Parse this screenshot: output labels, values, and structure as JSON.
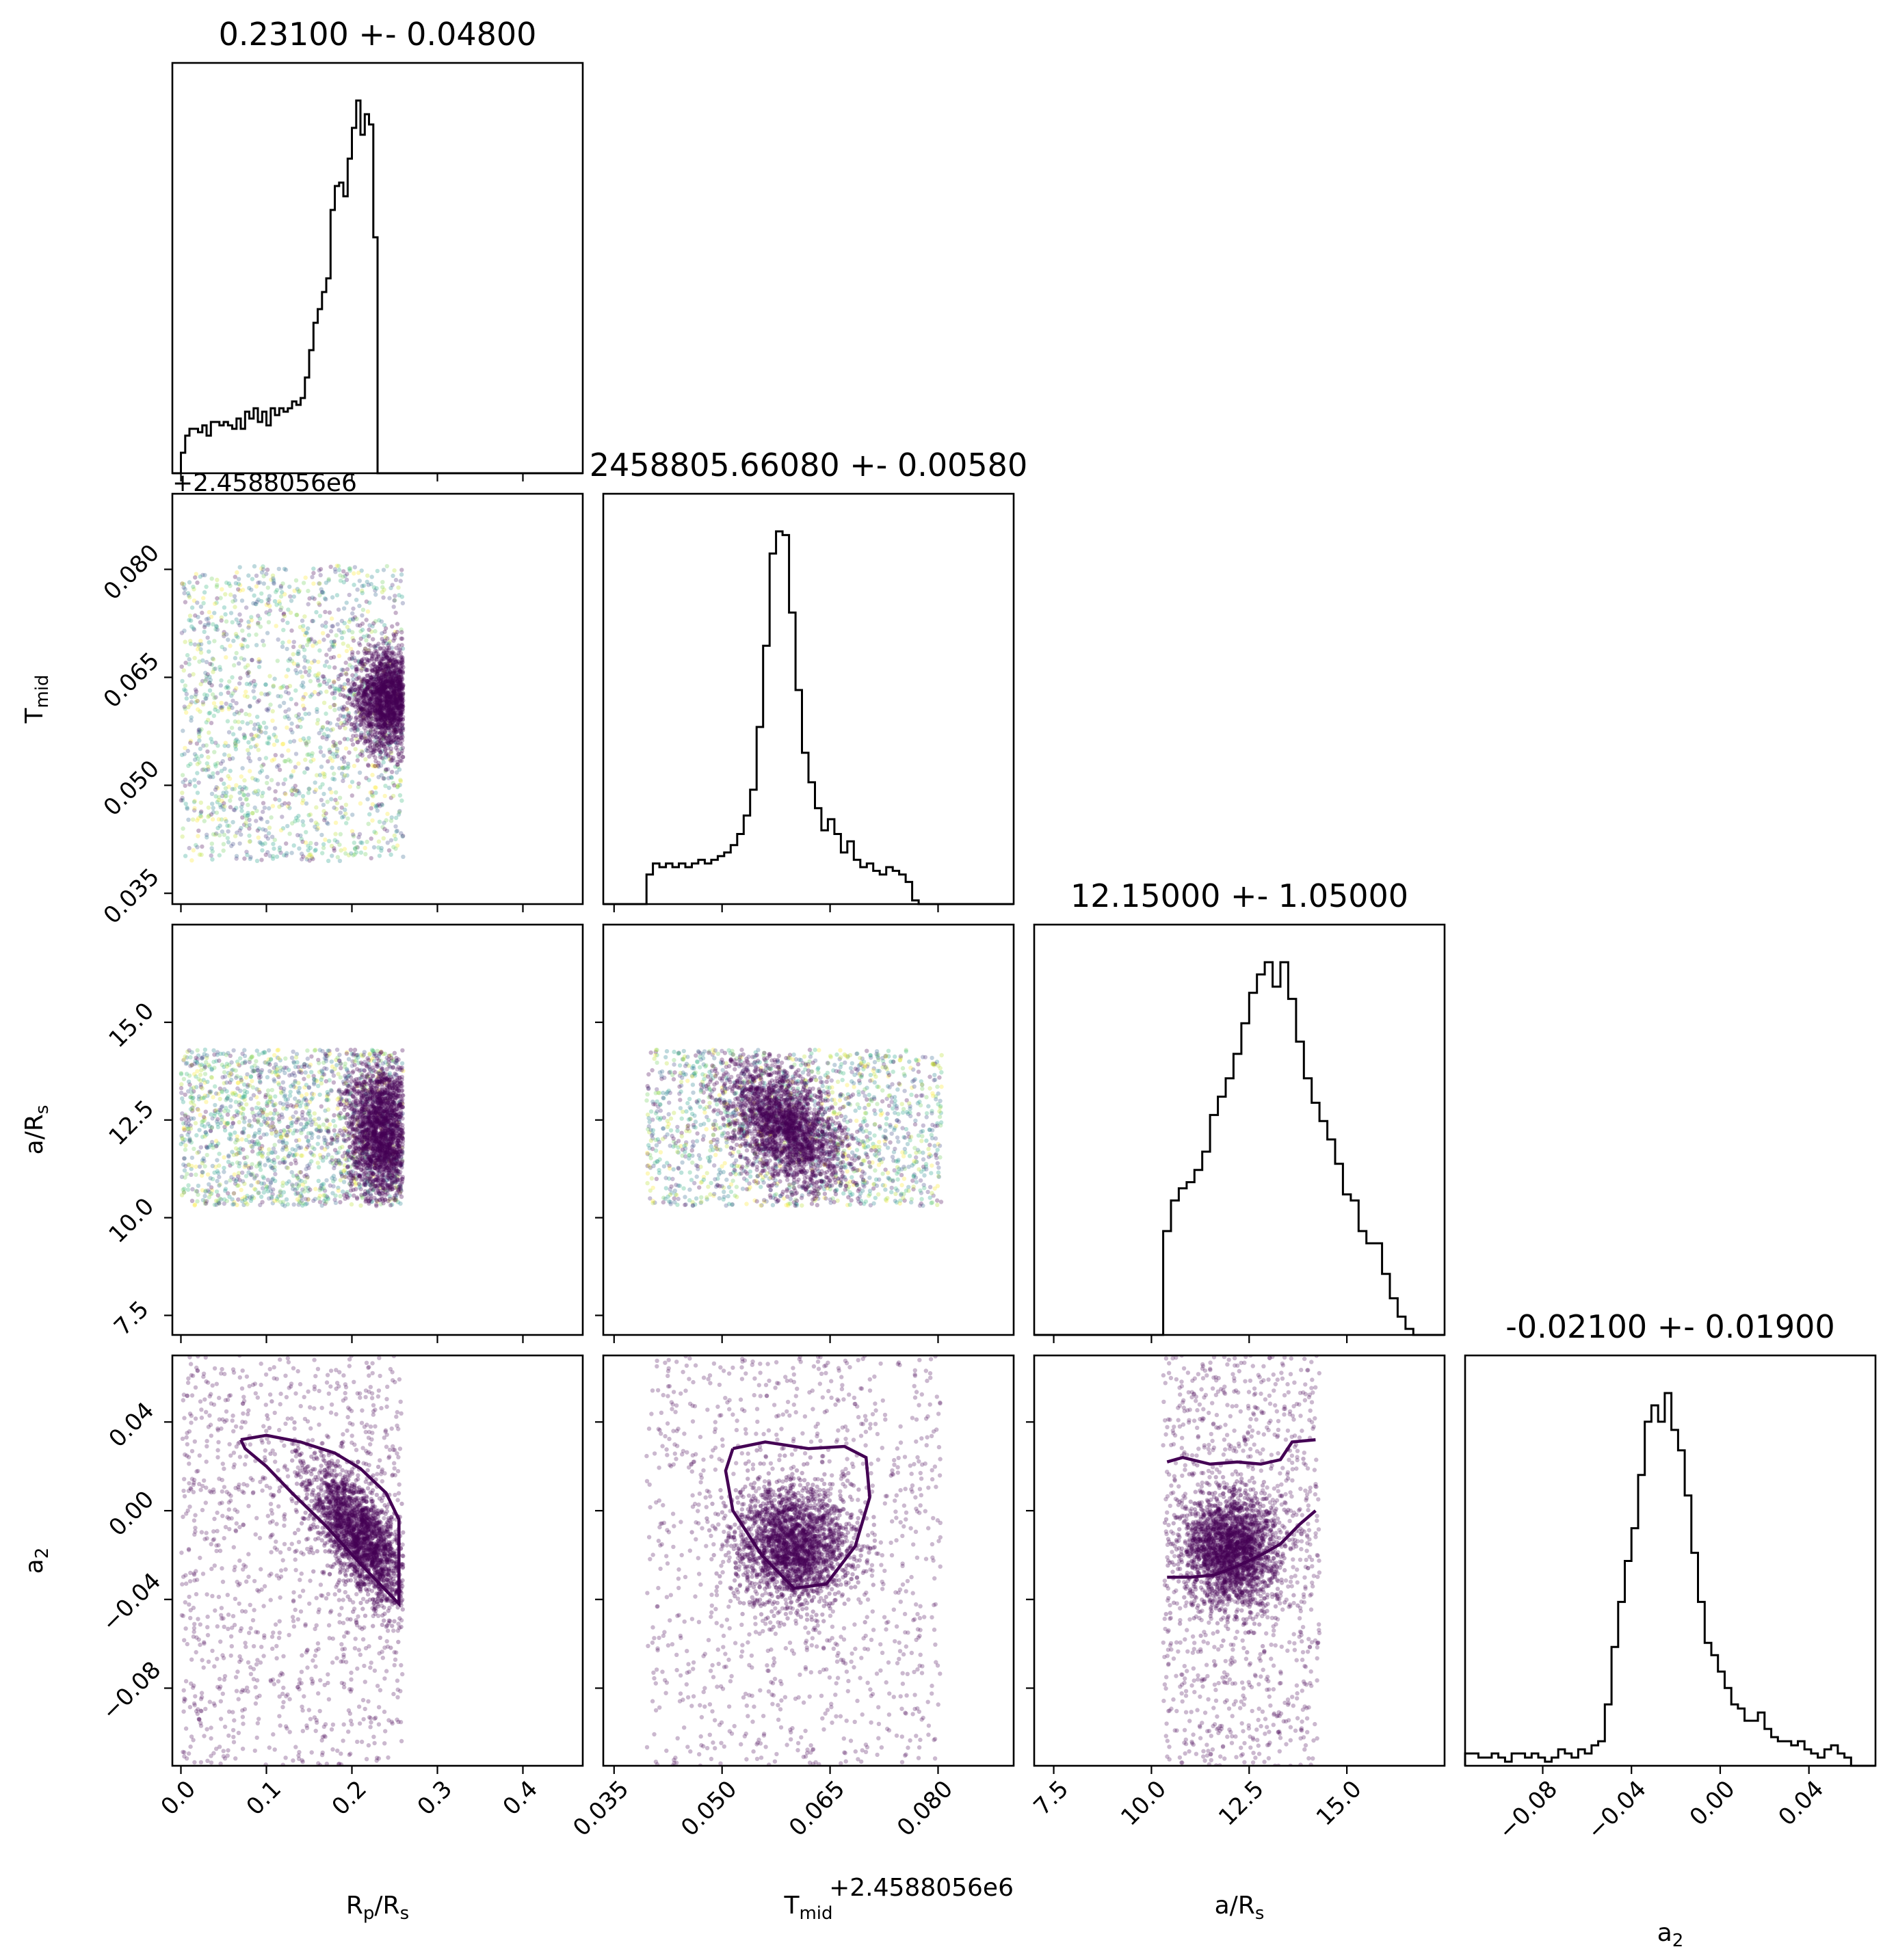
{
  "chart_data": {
    "type": "scatter",
    "layout": "corner",
    "parameters": [
      {
        "id": "rp",
        "label": "R",
        "label_sub": "p",
        "label_tail": "/R",
        "label_sub2": "s",
        "range": [
          -0.01,
          0.47
        ],
        "ticks": [
          "0.0",
          "0.1",
          "0.2",
          "0.3",
          "0.4"
        ],
        "tick_values": [
          0.0,
          0.1,
          0.2,
          0.3,
          0.4
        ],
        "offset_text": ""
      },
      {
        "id": "tmid",
        "label": "T",
        "label_sub": "mid",
        "label_tail": "",
        "label_sub2": "",
        "range": [
          0.0335,
          0.0905
        ],
        "ticks": [
          "0.035",
          "0.050",
          "0.065",
          "0.080"
        ],
        "tick_values": [
          0.035,
          0.05,
          0.065,
          0.08
        ],
        "offset_text": "+2.4588056e6"
      },
      {
        "id": "ars",
        "label": "a/R",
        "label_sub": "s",
        "label_tail": "",
        "label_sub2": "",
        "range": [
          7.0,
          17.5
        ],
        "ticks": [
          "7.5",
          "10.0",
          "12.5",
          "15.0"
        ],
        "tick_values": [
          7.5,
          10.0,
          12.5,
          15.0
        ],
        "offset_text": ""
      },
      {
        "id": "a2",
        "label": "a",
        "label_sub": "2",
        "label_tail": "",
        "label_sub2": "",
        "range": [
          -0.115,
          0.07
        ],
        "ticks": [
          "−0.08",
          "−0.04",
          "0.00",
          "0.04"
        ],
        "tick_values": [
          -0.08,
          -0.04,
          0.0,
          0.04
        ],
        "offset_text": ""
      }
    ],
    "titles": [
      "0.23100 +- 0.04800",
      "2458805.66080 +- 0.00580",
      "12.15000 +- 1.05000",
      "-0.02100 +- 0.01900"
    ],
    "histograms": [
      {
        "param": "rp",
        "bin_width": 0.005,
        "start": 0.0,
        "counts": [
          6,
          11,
          13,
          13,
          12,
          14,
          11,
          15,
          15,
          14,
          15,
          14,
          13,
          16,
          13,
          18,
          16,
          19,
          15,
          18,
          14,
          19,
          17,
          19,
          18,
          19,
          21,
          20,
          22,
          28,
          36,
          44,
          48,
          53,
          57,
          77,
          84,
          85,
          81,
          92,
          101,
          109,
          99,
          105,
          102,
          69,
          0
        ]
      },
      {
        "param": "tmid",
        "bin_width": 0.0009,
        "start": 0.0395,
        "counts": [
          8,
          11,
          10,
          11,
          10,
          11,
          10,
          11,
          12,
          11,
          12,
          13,
          14,
          16,
          19,
          24,
          31,
          48,
          70,
          95,
          101,
          100,
          79,
          58,
          41,
          33,
          26,
          20,
          23,
          19,
          14,
          17,
          12,
          10,
          11,
          9,
          8,
          10,
          9,
          8,
          6,
          1
        ]
      },
      {
        "param": "ars",
        "bin_width": 0.2,
        "start": 10.3,
        "counts": [
          17,
          22,
          24,
          25,
          27,
          30,
          36,
          39,
          42,
          46,
          51,
          56,
          59,
          61,
          57,
          61,
          55,
          48,
          42,
          38,
          35,
          32,
          28,
          23,
          22,
          17,
          15,
          15,
          10,
          6,
          3,
          1
        ]
      },
      {
        "param": "a2",
        "bin_width": 0.003,
        "start": -0.115,
        "counts": [
          3,
          3,
          2,
          2,
          3,
          2,
          1,
          3,
          3,
          2,
          3,
          2,
          1,
          2,
          4,
          3,
          2,
          4,
          3,
          5,
          6,
          15,
          29,
          40,
          50,
          58,
          71,
          84,
          88,
          84,
          91,
          82,
          77,
          66,
          52,
          40,
          30,
          27,
          23,
          19,
          15,
          14,
          11,
          11,
          13,
          9,
          7,
          6,
          6,
          5,
          6,
          4,
          3,
          2,
          4,
          5,
          3,
          2
        ]
      }
    ],
    "scatter_panels": [
      {
        "x": "rp",
        "y": "tmid",
        "x_range": [
          0.0,
          0.26
        ],
        "y_range": [
          0.0395,
          0.0805
        ],
        "dense_center": [
          0.245,
          0.062
        ],
        "dense_spread": [
          0.022,
          0.0035
        ]
      },
      {
        "x": "rp",
        "y": "ars",
        "x_range": [
          0.0,
          0.26
        ],
        "y_range": [
          10.3,
          14.3
        ],
        "dense_center": [
          0.235,
          12.2
        ],
        "dense_spread": [
          0.02,
          0.9
        ]
      },
      {
        "x": "tmid",
        "y": "ars",
        "x_range": [
          0.0395,
          0.0805
        ],
        "y_range": [
          10.3,
          14.3
        ],
        "dense_center": [
          0.059,
          12.3
        ],
        "dense_spread": [
          0.004,
          0.7
        ]
      },
      {
        "x": "rp",
        "y": "a2",
        "x_range": [
          0.0,
          0.26
        ],
        "y_range": [
          -0.115,
          0.07
        ],
        "dense_center": [
          0.21,
          -0.012
        ],
        "dense_spread": [
          0.03,
          0.012
        ]
      },
      {
        "x": "tmid",
        "y": "a2",
        "x_range": [
          0.0395,
          0.0805
        ],
        "y_range": [
          -0.115,
          0.07
        ],
        "dense_center": [
          0.06,
          -0.015
        ],
        "dense_spread": [
          0.004,
          0.013
        ]
      },
      {
        "x": "ars",
        "y": "a2",
        "x_range": [
          10.3,
          14.3
        ],
        "y_range": [
          -0.115,
          0.07
        ],
        "dense_center": [
          12.0,
          -0.018
        ],
        "dense_spread": [
          0.6,
          0.013
        ]
      }
    ],
    "contours": [
      {
        "x": "rp",
        "y": "a2",
        "points": [
          [
            0.07,
            0.032
          ],
          [
            0.1,
            0.034
          ],
          [
            0.14,
            0.031
          ],
          [
            0.18,
            0.026
          ],
          [
            0.21,
            0.019
          ],
          [
            0.24,
            0.008
          ],
          [
            0.255,
            -0.004
          ],
          [
            0.255,
            -0.042
          ],
          [
            0.24,
            -0.036
          ],
          [
            0.21,
            -0.024
          ],
          [
            0.17,
            -0.007
          ],
          [
            0.13,
            0.008
          ],
          [
            0.1,
            0.02
          ],
          [
            0.075,
            0.028
          ],
          [
            0.07,
            0.032
          ]
        ]
      },
      {
        "x": "tmid",
        "y": "a2",
        "points": [
          [
            0.0515,
            0.028
          ],
          [
            0.056,
            0.031
          ],
          [
            0.062,
            0.028
          ],
          [
            0.067,
            0.029
          ],
          [
            0.07,
            0.024
          ],
          [
            0.0705,
            0.006
          ],
          [
            0.0685,
            -0.016
          ],
          [
            0.0645,
            -0.033
          ],
          [
            0.06,
            -0.035
          ],
          [
            0.0555,
            -0.02
          ],
          [
            0.0515,
            0.0
          ],
          [
            0.0505,
            0.018
          ],
          [
            0.0515,
            0.028
          ]
        ]
      },
      {
        "x": "ars",
        "y": "a2",
        "points": [
          [
            10.4,
            0.022
          ],
          [
            10.8,
            0.024
          ],
          [
            11.5,
            0.021
          ],
          [
            12.2,
            0.022
          ],
          [
            12.8,
            0.021
          ],
          [
            13.3,
            0.023
          ],
          [
            13.6,
            0.031
          ],
          [
            14.2,
            0.032
          ]
        ]
      },
      {
        "x": "ars",
        "y": "a2",
        "points": [
          [
            10.4,
            -0.03
          ],
          [
            11.0,
            -0.03
          ],
          [
            11.6,
            -0.029
          ],
          [
            12.2,
            -0.025
          ],
          [
            12.8,
            -0.02
          ],
          [
            13.3,
            -0.015
          ],
          [
            13.8,
            -0.006
          ],
          [
            14.2,
            0.0
          ]
        ]
      }
    ],
    "colormap": "viridis",
    "dense_color": "#440154",
    "hist_color": "#000000",
    "grid": false,
    "legend": "none"
  }
}
